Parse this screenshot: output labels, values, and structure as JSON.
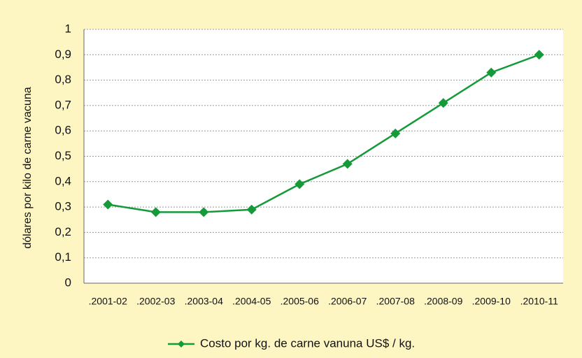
{
  "chart_data": {
    "type": "line",
    "y_label": "dólares por kilo de carne vacuna",
    "categories": [
      ".2001-02",
      ".2002-03",
      ".2003-04",
      ".2004-05",
      ".2005-06",
      ".2006-07",
      ".2007-08",
      ".2008-09",
      ".2009-10",
      ".2010-11"
    ],
    "series": [
      {
        "name": "Costo por kg. de carne vanuna US$ / kg.",
        "color": "#159a3a",
        "values": [
          0.31,
          0.28,
          0.28,
          0.29,
          0.39,
          0.47,
          0.59,
          0.71,
          0.83,
          0.9
        ]
      }
    ],
    "ylim": [
      0,
      1
    ],
    "yticks": [
      0,
      {
        "value": 0.1,
        "label": "0,1"
      },
      {
        "value": 0.2,
        "label": "0,2"
      },
      {
        "value": 0.3,
        "label": "0,3"
      },
      {
        "value": 0.4,
        "label": "0,4"
      },
      {
        "value": 0.5,
        "label": "0,5"
      },
      {
        "value": 0.6,
        "label": "0,6"
      },
      {
        "value": 0.7,
        "label": "0,7"
      },
      {
        "value": 0.8,
        "label": "0,8"
      },
      {
        "value": 0.9,
        "label": "0,9"
      },
      1
    ],
    "grid": true,
    "legend": "bottom"
  }
}
